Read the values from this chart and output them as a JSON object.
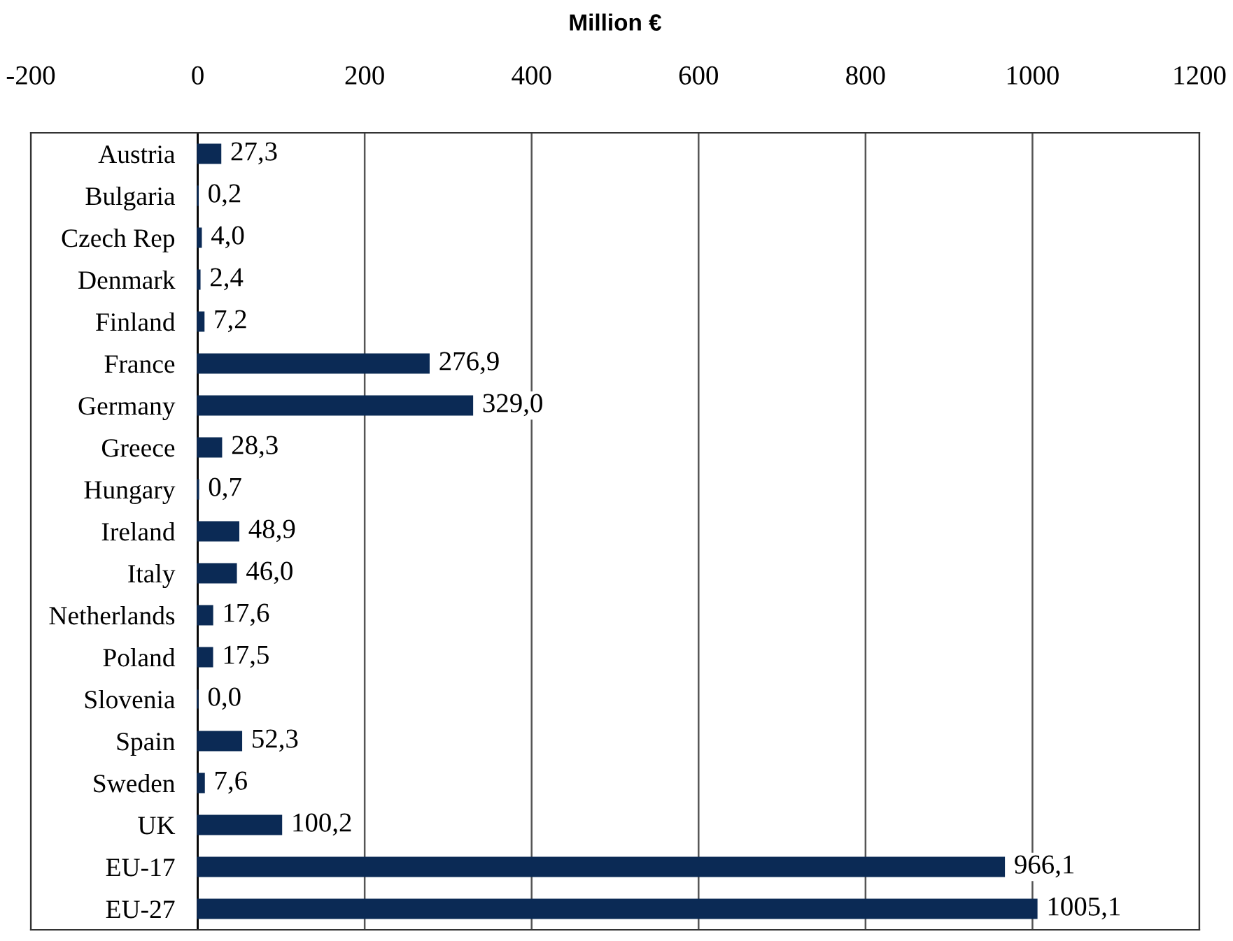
{
  "chart_data": {
    "type": "bar",
    "orientation": "horizontal",
    "xlabel": "Million €",
    "categories": [
      "Austria",
      "Bulgaria",
      "Czech Rep",
      "Denmark",
      "Finland",
      "France",
      "Germany",
      "Greece",
      "Hungary",
      "Ireland",
      "Italy",
      "Netherlands",
      "Poland",
      "Slovenia",
      "Spain",
      "Sweden",
      "UK",
      "EU-17",
      "EU-27"
    ],
    "values": [
      27.3,
      0.2,
      4.0,
      2.4,
      7.2,
      276.9,
      329.0,
      28.3,
      0.7,
      48.9,
      46.0,
      17.6,
      17.5,
      0.0,
      52.3,
      7.6,
      100.2,
      966.1,
      1005.1
    ],
    "value_labels": [
      "27,3",
      "0,2",
      "4,0",
      "2,4",
      "7,2",
      "276,9",
      "329,0",
      "28,3",
      "0,7",
      "48,9",
      "46,0",
      "17,6",
      "17,5",
      "0,0",
      "52,3",
      "7,6",
      "100,2",
      "966,1",
      "1005,1"
    ],
    "color": "#0b2a55",
    "xlim": [
      -200,
      1200
    ],
    "xticks": [
      -200,
      0,
      200,
      400,
      600,
      800,
      1000,
      1200
    ],
    "grid": "x"
  }
}
